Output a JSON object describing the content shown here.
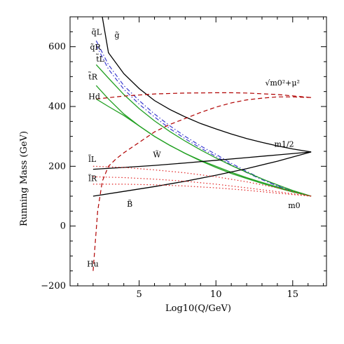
{
  "chart_data": {
    "type": "line",
    "xlabel": "Log10(Q/GeV)",
    "ylabel": "Running Mass (GeV)",
    "xlim": [
      0.5,
      17.2
    ],
    "ylim": [
      -200,
      700
    ],
    "xticks": [
      5,
      10,
      15
    ],
    "yticks": [
      -200,
      0,
      200,
      400,
      600
    ],
    "grid": false,
    "legend": "none",
    "series": [
      {
        "name": "g̃",
        "color": "#000000",
        "dash": "solid",
        "x": [
          2.6,
          3.0,
          4,
          5,
          6,
          7,
          8,
          9,
          10,
          11,
          12,
          13,
          14,
          15,
          16.2
        ],
        "y": [
          700,
          580,
          510,
          460,
          420,
          390,
          365,
          343,
          325,
          308,
          293,
          280,
          268,
          258,
          248
        ]
      },
      {
        "name": "q̃L",
        "color": "#3a3ad0",
        "dash": "dashdot",
        "x": [
          2.2,
          3,
          4,
          5,
          6,
          7,
          8,
          9,
          10,
          11,
          12,
          13,
          14,
          15,
          16.2
        ],
        "y": [
          620,
          540,
          470,
          420,
          375,
          335,
          300,
          268,
          240,
          210,
          183,
          158,
          136,
          118,
          100
        ]
      },
      {
        "name": "q̃R",
        "color": "#3a3ad0",
        "dash": "dashdot",
        "x": [
          2.2,
          3,
          4,
          5,
          6,
          7,
          8,
          9,
          10,
          11,
          12,
          13,
          14,
          15,
          16.2
        ],
        "y": [
          605,
          525,
          458,
          408,
          365,
          326,
          292,
          261,
          233,
          205,
          179,
          155,
          134,
          116,
          100
        ]
      },
      {
        "name": "t̃L",
        "color": "#22a022",
        "dash": "solid",
        "x": [
          2.2,
          3,
          4,
          5,
          6,
          7,
          8,
          9,
          10,
          11,
          12,
          13,
          14,
          15,
          16.2
        ],
        "y": [
          540,
          495,
          440,
          393,
          352,
          316,
          284,
          255,
          228,
          203,
          180,
          158,
          138,
          119,
          100
        ]
      },
      {
        "name": "t̃R",
        "color": "#22a022",
        "dash": "solid",
        "x": [
          2.2,
          3,
          4,
          5,
          6,
          7,
          8,
          9,
          10,
          11,
          12,
          13,
          14,
          15,
          16.2
        ],
        "y": [
          470,
          425,
          375,
          335,
          300,
          270,
          243,
          218,
          196,
          176,
          159,
          143,
          128,
          114,
          100
        ]
      },
      {
        "name": "Hd",
        "color": "#22a022",
        "dash": "solid",
        "x": [
          2.2,
          3,
          4,
          5,
          6,
          7,
          8,
          9,
          10,
          11,
          12,
          13,
          14,
          15,
          16.2
        ],
        "y": [
          425,
          400,
          370,
          335,
          300,
          270,
          243,
          220,
          200,
          180,
          162,
          146,
          131,
          116,
          100
        ]
      },
      {
        "name": "m1/2 (W̃)",
        "color": "#000000",
        "dash": "solid",
        "x": [
          2,
          4,
          6,
          8,
          10,
          12,
          14,
          16.2
        ],
        "y": [
          190,
          196,
          203,
          211,
          220,
          229,
          238,
          248
        ]
      },
      {
        "name": "m1/2 (B̃)",
        "color": "#000000",
        "dash": "solid",
        "x": [
          2,
          4,
          6,
          8,
          10,
          12,
          14,
          16.2
        ],
        "y": [
          100,
          116,
          132,
          150,
          170,
          192,
          217,
          248
        ]
      },
      {
        "name": "√(m0²+μ²)",
        "color": "#b00000",
        "dash": "dashed",
        "x": [
          2.0,
          2.3,
          2.6,
          3,
          3.5,
          4,
          5,
          6,
          7,
          8,
          9,
          10,
          11,
          12,
          13,
          14,
          15,
          16.2
        ],
        "y": [
          -150,
          50,
          150,
          200,
          225,
          245,
          280,
          315,
          340,
          360,
          380,
          398,
          412,
          422,
          428,
          432,
          432,
          430
        ]
      },
      {
        "name": "Hd red",
        "color": "#b00000",
        "dash": "dashed",
        "x": [
          2.2,
          4,
          6,
          8,
          10,
          11,
          12,
          14,
          16.2
        ],
        "y": [
          425,
          435,
          442,
          445,
          446,
          446,
          445,
          440,
          430
        ]
      },
      {
        "name": "l̃L",
        "color": "#e02020",
        "dash": "dotted",
        "x": [
          2,
          4,
          6,
          8,
          10,
          12,
          14,
          16.2
        ],
        "y": [
          200,
          196,
          188,
          178,
          165,
          148,
          128,
          100
        ]
      },
      {
        "name": "l̃R",
        "color": "#e02020",
        "dash": "dotted",
        "x": [
          2,
          4,
          6,
          8,
          10,
          12,
          14,
          16.2
        ],
        "y": [
          140,
          140,
          138,
          134,
          128,
          120,
          110,
          100
        ]
      },
      {
        "name": "l̃R2",
        "color": "#e02020",
        "dash": "dotted",
        "x": [
          2,
          4,
          6,
          8,
          10,
          12,
          14,
          16.2
        ],
        "y": [
          165,
          162,
          157,
          150,
          140,
          128,
          115,
          100
        ]
      }
    ],
    "labels": {
      "gluino": "g̃",
      "qL": "q̃L",
      "qR": "q̃R",
      "tL": "t̃L",
      "tR": "t̃R",
      "Hd": "Hd",
      "W": "W̃",
      "lL": "l̃L",
      "lR": "l̃R",
      "B": "B̃",
      "Hu": "Hu",
      "m12": "m1/2",
      "m0": "m0",
      "sqrt": "√m0²+μ²"
    }
  }
}
